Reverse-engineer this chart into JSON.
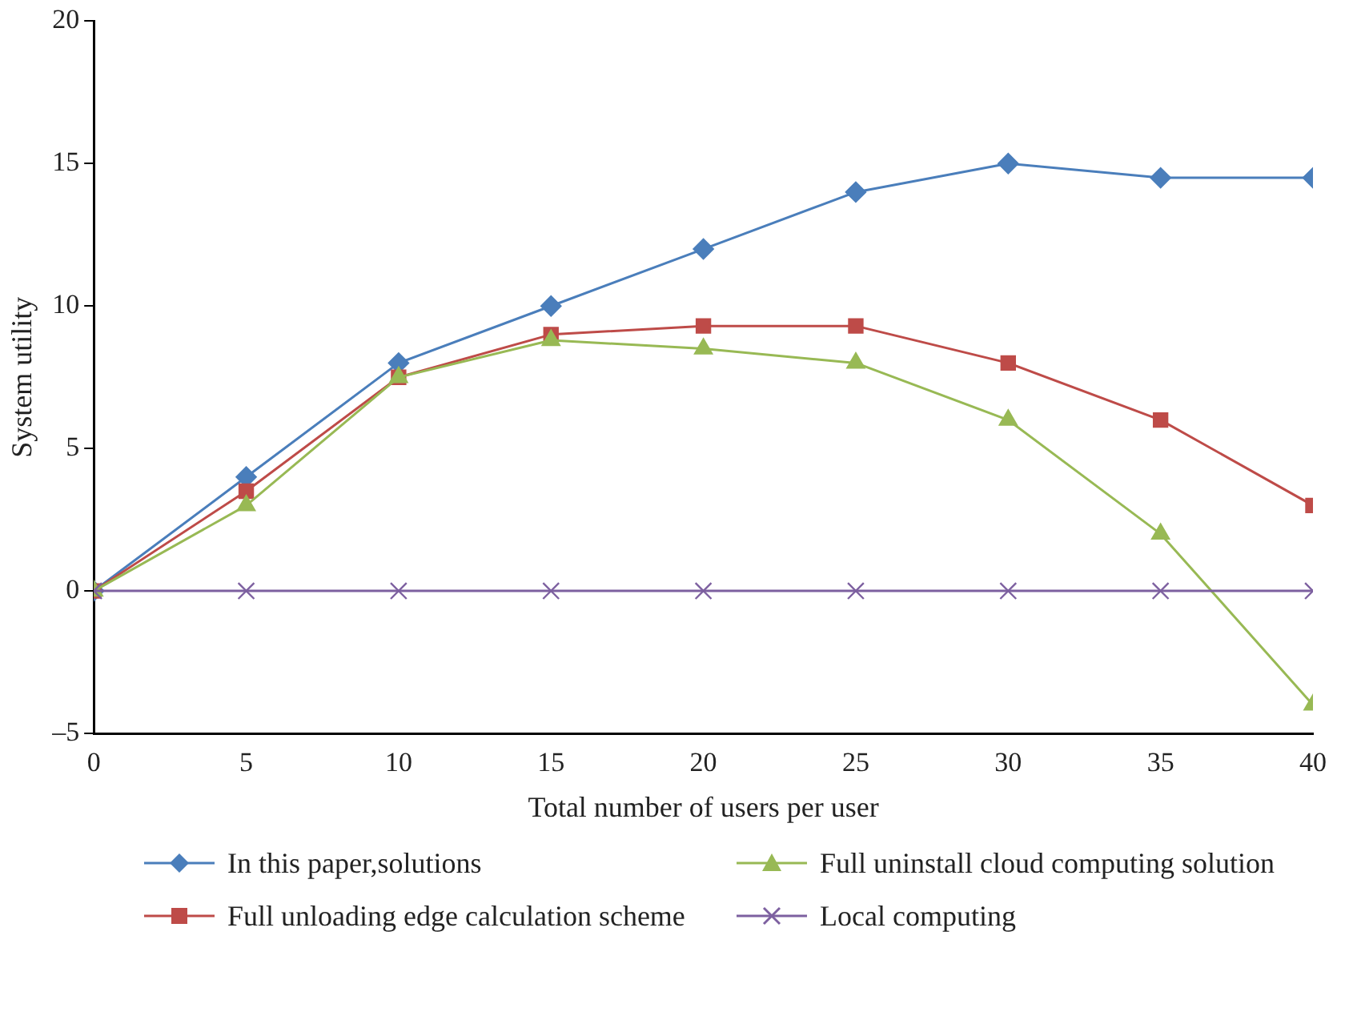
{
  "chart_data": {
    "type": "line",
    "xlabel": "Total number of users per user",
    "ylabel": "System utility",
    "x": [
      0,
      5,
      10,
      15,
      20,
      25,
      30,
      35,
      40
    ],
    "xlim": [
      0,
      40
    ],
    "xticks": [
      0,
      5,
      10,
      15,
      20,
      25,
      30,
      35,
      40
    ],
    "ylim": [
      -5,
      20
    ],
    "yticks": [
      {
        "value": -5,
        "label": "–5"
      },
      0,
      5,
      10,
      15,
      20
    ],
    "grid": false,
    "legend": "bottom",
    "series": [
      {
        "name": "In this paper,solutions",
        "color": "#4a7ebb",
        "marker": "diamond",
        "values": [
          0,
          4,
          8,
          10,
          12,
          14,
          15,
          14.5,
          14.5
        ]
      },
      {
        "name": "Full unloading edge calculation scheme",
        "color": "#be4b48",
        "marker": "square",
        "values": [
          0,
          3.5,
          7.5,
          9,
          9.3,
          9.3,
          8,
          6,
          3
        ]
      },
      {
        "name": "Full uninstall cloud computing solution",
        "color": "#98b954",
        "marker": "triangle",
        "values": [
          0,
          3,
          7.5,
          8.8,
          8.5,
          8,
          6,
          2,
          -4
        ]
      },
      {
        "name": "Local computing",
        "color": "#7d60a0",
        "marker": "cross",
        "values": [
          0,
          0,
          0,
          0,
          0,
          0,
          0,
          0,
          0
        ]
      }
    ]
  }
}
